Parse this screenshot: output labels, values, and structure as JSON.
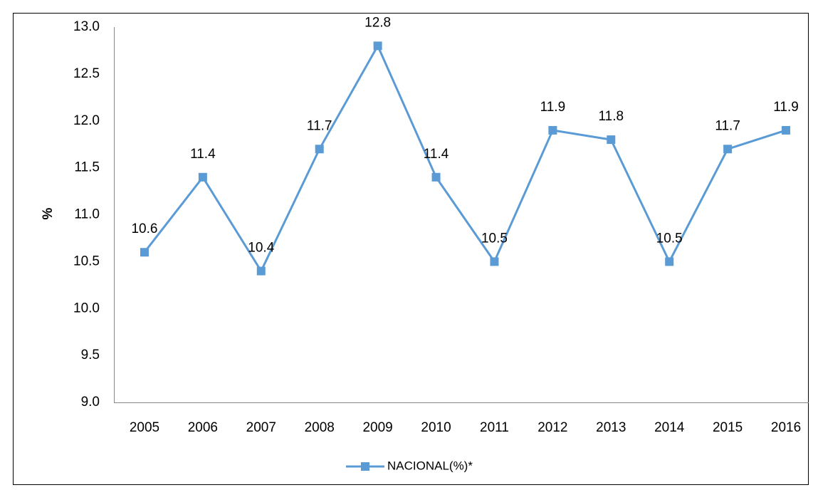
{
  "chart_data": {
    "type": "line",
    "y_label": "%",
    "categories": [
      "2005",
      "2006",
      "2007",
      "2008",
      "2009",
      "2010",
      "2011",
      "2012",
      "2013",
      "2014",
      "2015",
      "2016"
    ],
    "series": [
      {
        "name": "NACIONAL(%)*",
        "color": "#5b9bd5",
        "values": [
          10.6,
          11.4,
          10.4,
          11.7,
          12.8,
          11.4,
          10.5,
          11.9,
          11.8,
          10.5,
          11.7,
          11.9
        ]
      }
    ],
    "ylim": [
      9,
      13
    ],
    "yticks": [
      {
        "value": 9,
        "label": "9.0"
      },
      9.5,
      {
        "value": 10,
        "label": "10.0"
      },
      10.5,
      {
        "value": 11,
        "label": "11.0"
      },
      11.5,
      {
        "value": 12,
        "label": "12.0"
      },
      12.5,
      {
        "value": 13,
        "label": "13.0"
      }
    ],
    "grid": false,
    "legend": "bottom"
  }
}
